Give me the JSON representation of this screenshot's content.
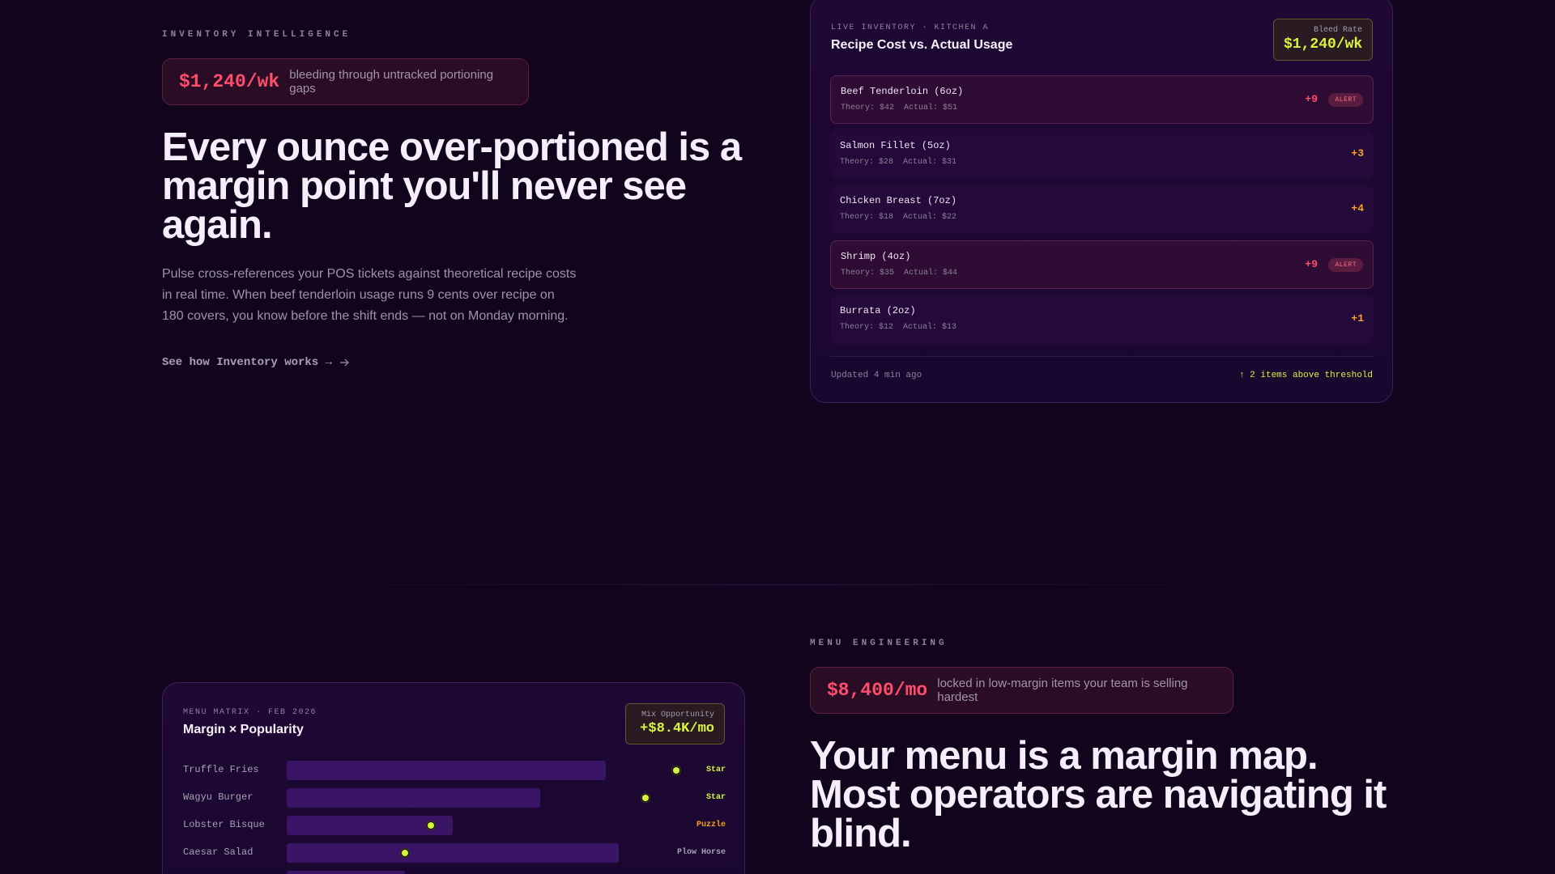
{
  "inventory": {
    "eyebrow": "INVENTORY INTELLIGENCE",
    "bleed_amount": "$1,240/wk",
    "bleed_text": "bleeding through untracked portioning gaps",
    "headline_1": "Every ounce over-portioned is a",
    "headline_2": "margin point you'll never see",
    "headline_3": "again.",
    "body_1": "Pulse cross-references your POS tickets against theoretical recipe costs",
    "body_2": "in real time. When beef tenderloin usage runs 9 cents over recipe on",
    "body_3": "180 covers, you know before the shift ends — not on Monday morning.",
    "cta_label": "See how Inventory works →",
    "cta_icon": "arrow-right-icon"
  },
  "inventory_card": {
    "kicker": "LIVE INVENTORY · KITCHEN A",
    "title": "Recipe Cost vs. Actual Usage",
    "rate_label": "Bleed Rate",
    "rate_value": "$1,240/wk",
    "rows": [
      {
        "name": "Beef Tenderloin (6oz)",
        "meta": "Theory: $42  Actual: $51",
        "delta": "+9",
        "alert": true,
        "badge": "ALERT"
      },
      {
        "name": "Salmon Fillet (5oz)",
        "meta": "Theory: $28  Actual: $31",
        "delta": "+3",
        "alert": false,
        "badge": ""
      },
      {
        "name": "Chicken Breast (7oz)",
        "meta": "Theory: $18  Actual: $22",
        "delta": "+4",
        "alert": false,
        "badge": ""
      },
      {
        "name": "Shrimp (4oz)",
        "meta": "Theory: $35  Actual: $44",
        "delta": "+9",
        "alert": true,
        "badge": "ALERT"
      },
      {
        "name": "Burrata (2oz)",
        "meta": "Theory: $12  Actual: $13",
        "delta": "+1",
        "alert": false,
        "badge": ""
      }
    ],
    "updated": "Updated 4 min ago",
    "threshold": "↑ 2 items above threshold"
  },
  "menu": {
    "eyebrow": "MENU ENGINEERING",
    "bleed_amount": "$8,400/mo",
    "bleed_text": "locked in low-margin items your team is selling hardest",
    "headline_1": "Your menu is a margin map.",
    "headline_2": "Most operators are navigating it",
    "headline_3": "blind."
  },
  "matrix_card": {
    "kicker": "MENU MATRIX · FEB 2026",
    "title": "Margin × Popularity",
    "opp_label": "Mix Opportunity",
    "opp_value": "+$8.4K/mo",
    "items": [
      {
        "name": "Truffle Fries",
        "popularity": 0.73,
        "margin": 0.89,
        "tag": "Star"
      },
      {
        "name": "Wagyu Burger",
        "popularity": 0.58,
        "margin": 0.82,
        "tag": "Star"
      },
      {
        "name": "Lobster Bisque",
        "popularity": 0.38,
        "margin": 0.33,
        "tag": "Puzzle"
      },
      {
        "name": "Caesar Salad",
        "popularity": 0.76,
        "margin": 0.27,
        "tag": "Plow Horse"
      },
      {
        "name": "",
        "popularity": 0.27,
        "margin": 0.0,
        "tag": ""
      }
    ]
  },
  "colors": {
    "background": "#12041c",
    "alert_red": "#ff4d6d",
    "warn_amber": "#f5a524",
    "accent_lime": "#d4f53a"
  }
}
